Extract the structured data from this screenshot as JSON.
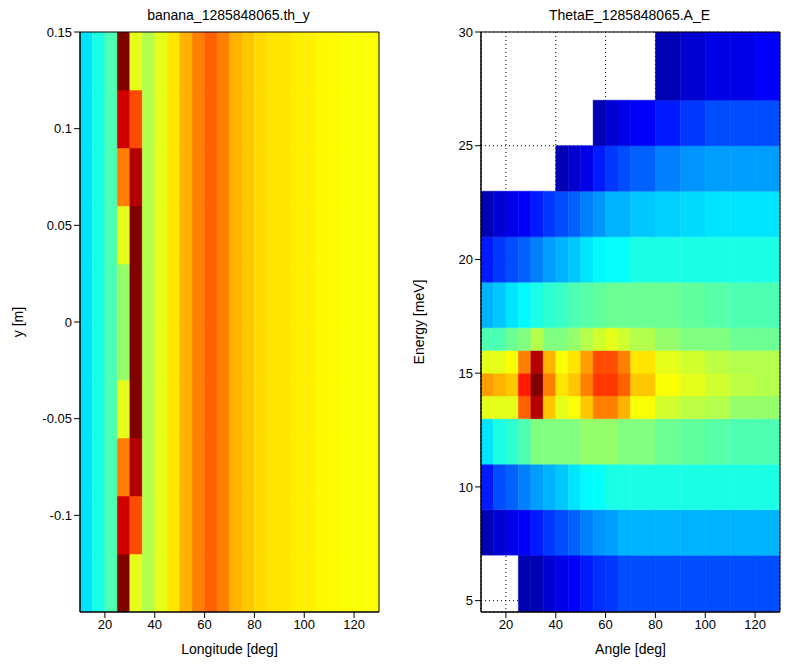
{
  "chart_data": [
    {
      "type": "heatmap",
      "title": "banana_1285848065.th_y",
      "x_label": "Longitude [deg]",
      "y_label": "y [m]",
      "xlim": [
        10,
        130
      ],
      "ylim": [
        -0.15,
        0.15
      ],
      "xticks": [
        20,
        40,
        60,
        80,
        100,
        120
      ],
      "yticks": [
        -0.1,
        -0.05,
        0,
        0.05,
        0.1,
        0.15
      ],
      "grid": false,
      "x_edges": [
        10,
        15,
        20,
        25,
        30,
        35,
        40,
        45,
        50,
        55,
        60,
        65,
        70,
        75,
        80,
        85,
        90,
        95,
        100,
        105,
        110,
        115,
        120,
        125,
        130
      ],
      "y_edges": [
        -0.15,
        -0.12,
        -0.09,
        -0.06,
        -0.03,
        0,
        0.03,
        0.06,
        0.09,
        0.12,
        0.15
      ],
      "z": [
        [
          0.35,
          0.4,
          0.45,
          1.0,
          0.6,
          0.55,
          0.6,
          0.65,
          0.7,
          0.75,
          0.78,
          0.75,
          0.7,
          0.68,
          0.66,
          0.65,
          0.65,
          0.64,
          0.64,
          0.63,
          0.63,
          0.62,
          0.62,
          0.62
        ],
        [
          0.35,
          0.4,
          0.45,
          0.92,
          0.8,
          0.55,
          0.6,
          0.65,
          0.7,
          0.75,
          0.78,
          0.75,
          0.7,
          0.68,
          0.66,
          0.65,
          0.65,
          0.64,
          0.64,
          0.63,
          0.63,
          0.62,
          0.62,
          0.62
        ],
        [
          0.35,
          0.4,
          0.45,
          0.75,
          0.95,
          0.55,
          0.6,
          0.65,
          0.7,
          0.75,
          0.78,
          0.75,
          0.7,
          0.68,
          0.66,
          0.65,
          0.65,
          0.64,
          0.64,
          0.63,
          0.63,
          0.62,
          0.62,
          0.62
        ],
        [
          0.35,
          0.4,
          0.45,
          0.6,
          1.0,
          0.55,
          0.6,
          0.65,
          0.7,
          0.75,
          0.78,
          0.75,
          0.7,
          0.68,
          0.66,
          0.65,
          0.65,
          0.64,
          0.64,
          0.63,
          0.63,
          0.62,
          0.62,
          0.62
        ],
        [
          0.35,
          0.4,
          0.45,
          0.52,
          1.0,
          0.55,
          0.6,
          0.65,
          0.7,
          0.75,
          0.78,
          0.75,
          0.7,
          0.68,
          0.66,
          0.65,
          0.65,
          0.64,
          0.64,
          0.63,
          0.63,
          0.62,
          0.62,
          0.62
        ],
        [
          0.35,
          0.4,
          0.45,
          0.52,
          1.0,
          0.55,
          0.6,
          0.65,
          0.7,
          0.75,
          0.78,
          0.75,
          0.7,
          0.68,
          0.66,
          0.65,
          0.65,
          0.64,
          0.64,
          0.63,
          0.63,
          0.62,
          0.62,
          0.62
        ],
        [
          0.35,
          0.4,
          0.45,
          0.6,
          1.0,
          0.55,
          0.6,
          0.65,
          0.7,
          0.75,
          0.78,
          0.75,
          0.7,
          0.68,
          0.66,
          0.65,
          0.65,
          0.64,
          0.64,
          0.63,
          0.63,
          0.62,
          0.62,
          0.62
        ],
        [
          0.35,
          0.4,
          0.45,
          0.75,
          0.95,
          0.55,
          0.6,
          0.65,
          0.7,
          0.75,
          0.78,
          0.75,
          0.7,
          0.68,
          0.66,
          0.65,
          0.65,
          0.64,
          0.64,
          0.63,
          0.63,
          0.62,
          0.62,
          0.62
        ],
        [
          0.35,
          0.4,
          0.45,
          0.92,
          0.8,
          0.55,
          0.6,
          0.65,
          0.7,
          0.75,
          0.78,
          0.75,
          0.7,
          0.68,
          0.66,
          0.65,
          0.65,
          0.64,
          0.64,
          0.63,
          0.63,
          0.62,
          0.62,
          0.62
        ],
        [
          0.35,
          0.4,
          0.45,
          1.0,
          0.6,
          0.55,
          0.6,
          0.65,
          0.7,
          0.75,
          0.78,
          0.75,
          0.7,
          0.68,
          0.66,
          0.65,
          0.65,
          0.64,
          0.64,
          0.63,
          0.63,
          0.62,
          0.62,
          0.62
        ]
      ]
    },
    {
      "type": "heatmap",
      "title": "ThetaE_1285848065.A_E",
      "x_label": "Angle [deg]",
      "y_label": "Energy [meV]",
      "xlim": [
        10,
        130
      ],
      "ylim": [
        4.5,
        30
      ],
      "xticks": [
        20,
        40,
        60,
        80,
        100,
        120
      ],
      "yticks": [
        5,
        10,
        15,
        20,
        25,
        30
      ],
      "grid": true,
      "x_edges": [
        10,
        15,
        20,
        25,
        30,
        35,
        40,
        45,
        50,
        55,
        60,
        65,
        70,
        80,
        90,
        100,
        110,
        120,
        130
      ],
      "y_edges": [
        4.5,
        7,
        9,
        11,
        13,
        14,
        15,
        16,
        17,
        19,
        21,
        23,
        25,
        27,
        30
      ],
      "z": [
        [
          null,
          null,
          null,
          0.05,
          0.05,
          0.08,
          0.1,
          0.12,
          0.15,
          0.17,
          0.18,
          0.2,
          0.2,
          0.2,
          0.2,
          0.2,
          0.2,
          0.2
        ],
        [
          0.05,
          0.08,
          0.1,
          0.12,
          0.15,
          0.18,
          0.2,
          0.22,
          0.25,
          0.27,
          0.28,
          0.3,
          0.3,
          0.3,
          0.3,
          0.3,
          0.3,
          0.3
        ],
        [
          0.15,
          0.2,
          0.22,
          0.25,
          0.28,
          0.3,
          0.32,
          0.35,
          0.37,
          0.38,
          0.4,
          0.4,
          0.4,
          0.4,
          0.4,
          0.4,
          0.4,
          0.4
        ],
        [
          0.35,
          0.4,
          0.42,
          0.45,
          0.5,
          0.5,
          0.5,
          0.5,
          0.52,
          0.52,
          0.52,
          0.5,
          0.5,
          0.48,
          0.47,
          0.46,
          0.45,
          0.45
        ],
        [
          0.6,
          0.6,
          0.6,
          0.78,
          0.95,
          0.68,
          0.6,
          0.62,
          0.68,
          0.75,
          0.75,
          0.7,
          0.62,
          0.58,
          0.56,
          0.55,
          0.52,
          0.52
        ],
        [
          0.72,
          0.7,
          0.68,
          0.85,
          1.0,
          0.75,
          0.65,
          0.68,
          0.75,
          0.82,
          0.82,
          0.78,
          0.68,
          0.62,
          0.6,
          0.58,
          0.56,
          0.55
        ],
        [
          0.6,
          0.6,
          0.62,
          0.75,
          0.95,
          0.7,
          0.62,
          0.65,
          0.72,
          0.8,
          0.8,
          0.75,
          0.65,
          0.6,
          0.58,
          0.56,
          0.55,
          0.55
        ],
        [
          0.45,
          0.45,
          0.48,
          0.5,
          0.55,
          0.5,
          0.5,
          0.52,
          0.55,
          0.58,
          0.6,
          0.58,
          0.55,
          0.52,
          0.5,
          0.5,
          0.48,
          0.48
        ],
        [
          0.3,
          0.32,
          0.35,
          0.37,
          0.4,
          0.42,
          0.43,
          0.45,
          0.46,
          0.47,
          0.48,
          0.48,
          0.48,
          0.48,
          0.47,
          0.46,
          0.45,
          0.45
        ],
        [
          0.15,
          0.18,
          0.2,
          0.22,
          0.25,
          0.28,
          0.3,
          0.32,
          0.35,
          0.37,
          0.38,
          0.38,
          0.4,
          0.4,
          0.4,
          0.4,
          0.4,
          0.4
        ],
        [
          0.05,
          0.08,
          0.1,
          0.12,
          0.15,
          0.18,
          0.2,
          0.22,
          0.25,
          0.27,
          0.3,
          0.3,
          0.32,
          0.33,
          0.34,
          0.35,
          0.35,
          0.35
        ],
        [
          null,
          null,
          null,
          null,
          null,
          null,
          0.05,
          0.08,
          0.1,
          0.15,
          0.18,
          0.2,
          0.22,
          0.25,
          0.27,
          0.28,
          0.28,
          0.28
        ],
        [
          null,
          null,
          null,
          null,
          null,
          null,
          null,
          null,
          null,
          0.05,
          0.08,
          0.1,
          0.12,
          0.15,
          0.18,
          0.2,
          0.2,
          0.2
        ],
        [
          null,
          null,
          null,
          null,
          null,
          null,
          null,
          null,
          null,
          null,
          null,
          null,
          null,
          0.05,
          0.08,
          0.1,
          0.1,
          0.12
        ]
      ]
    }
  ]
}
